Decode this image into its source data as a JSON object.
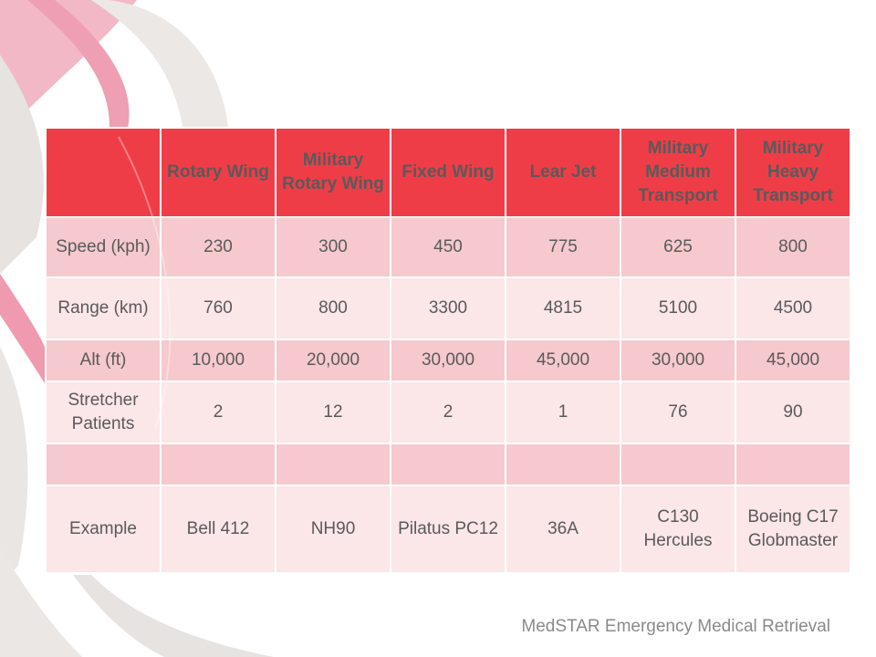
{
  "table": {
    "headers": [
      "",
      "Rotary Wing",
      "Military Rotary Wing",
      "Fixed Wing",
      "Lear Jet",
      "Military Medium Transport",
      "Military Heavy Transport"
    ],
    "rows": [
      [
        "Speed (kph)",
        "230",
        "300",
        "450",
        "775",
        "625",
        "800"
      ],
      [
        "Range (km)",
        "760",
        "800",
        "3300",
        "4815",
        "5100",
        "4500"
      ],
      [
        "Alt (ft)",
        "10,000",
        "20,000",
        "30,000",
        "45,000",
        "30,000",
        "45,000"
      ],
      [
        "Stretcher Patients",
        "2",
        "12",
        "2",
        "1",
        "76",
        "90"
      ],
      [
        "",
        "",
        "",
        "",
        "",
        "",
        ""
      ],
      [
        "Example",
        "Bell 412",
        "NH90",
        "Pilatus PC12",
        "36A",
        "C130 Hercules",
        "Boeing C17 Globmaster"
      ]
    ]
  },
  "footer": {
    "text": "MedSTAR Emergency Medical Retrieval"
  },
  "colors": {
    "header_bg": "#ef3d48",
    "row_dark": "#f5c9cd",
    "row_light": "#fbe6e8",
    "ribbon_pink": "#f1b3c3",
    "ribbon_gray": "#e4e1de"
  },
  "decor": {
    "background": "ribbon-swirl"
  }
}
